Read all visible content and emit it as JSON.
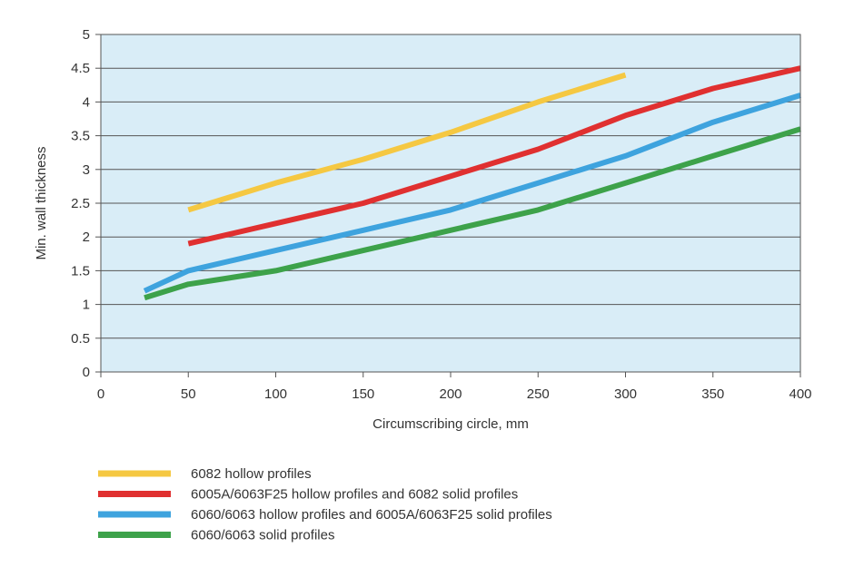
{
  "chart_data": {
    "type": "line",
    "xlabel": "Circumscribing circle, mm",
    "ylabel": "Min. wall thickness",
    "xlim": [
      0,
      400
    ],
    "ylim": [
      0,
      5
    ],
    "xticks": [
      0,
      50,
      100,
      150,
      200,
      250,
      300,
      350,
      400
    ],
    "yticks": [
      0,
      0.5,
      1,
      1.5,
      2,
      2.5,
      3,
      3.5,
      4,
      4.5,
      5
    ],
    "grid": "horizontal",
    "legend_position": "bottom",
    "plot_background": "#d9edf7",
    "series": [
      {
        "name": "6082 hollow profiles",
        "color": "#f5c842",
        "x": [
          50,
          100,
          150,
          200,
          250,
          300
        ],
        "y": [
          2.4,
          2.8,
          3.15,
          3.55,
          4.0,
          4.4
        ]
      },
      {
        "name": "6005A/6063F25 hollow profiles and 6082 solid profiles",
        "color": "#e03030",
        "x": [
          50,
          100,
          150,
          200,
          250,
          300,
          350,
          400
        ],
        "y": [
          1.9,
          2.2,
          2.5,
          2.9,
          3.3,
          3.8,
          4.2,
          4.5
        ]
      },
      {
        "name": "6060/6063 hollow profiles and 6005A/6063F25 solid profiles",
        "color": "#3ea3de",
        "x": [
          25,
          50,
          100,
          150,
          200,
          250,
          300,
          350,
          400
        ],
        "y": [
          1.2,
          1.5,
          1.8,
          2.1,
          2.4,
          2.8,
          3.2,
          3.7,
          4.1
        ]
      },
      {
        "name": "6060/6063 solid profiles",
        "color": "#3da24a",
        "x": [
          25,
          50,
          100,
          150,
          200,
          250,
          300,
          350,
          400
        ],
        "y": [
          1.1,
          1.3,
          1.5,
          1.8,
          2.1,
          2.4,
          2.8,
          3.2,
          3.6
        ]
      }
    ]
  }
}
